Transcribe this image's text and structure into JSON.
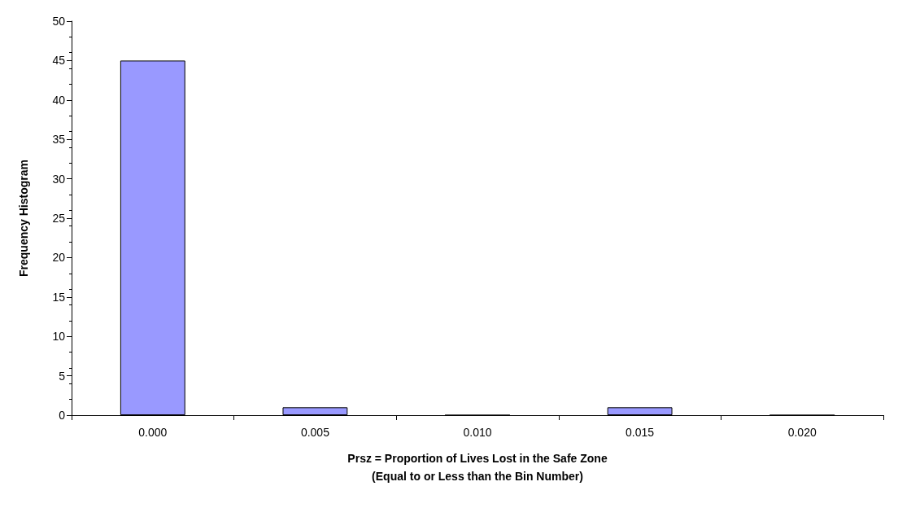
{
  "chart_data": {
    "type": "bar",
    "xlabel": "Prsz = Proportion of Lives Lost in the Safe Zone\n(Equal to or Less than the Bin Number)",
    "ylabel": "Frequency Histogram",
    "categories": [
      "0.000",
      "0.005",
      "0.010",
      "0.015",
      "0.020"
    ],
    "values": [
      45,
      1,
      0,
      1,
      0
    ],
    "color": "#9999ff",
    "ylim": [
      0,
      50
    ],
    "yticks": [
      0,
      5,
      10,
      15,
      20,
      25,
      30,
      35,
      40,
      45,
      50
    ],
    "grid": false
  }
}
